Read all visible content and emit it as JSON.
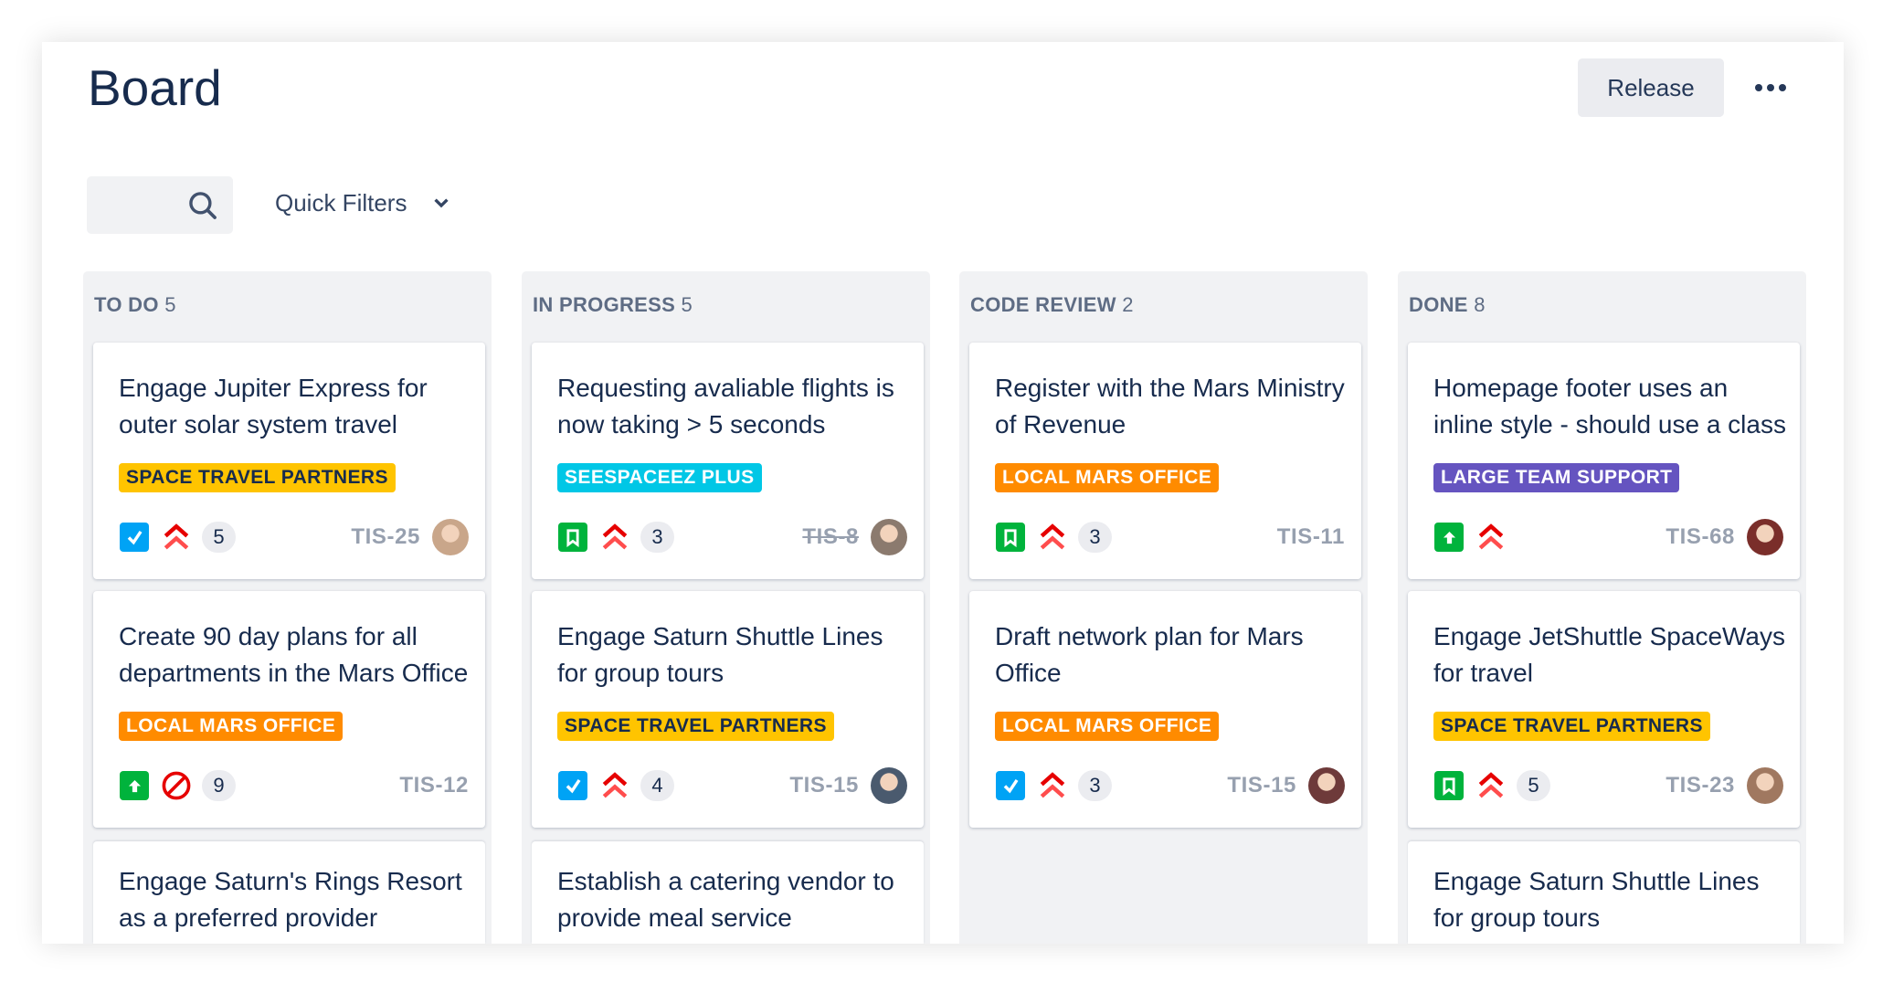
{
  "header": {
    "title": "Board",
    "release_label": "Release",
    "more_icon": "ellipsis-icon"
  },
  "filters": {
    "search_icon": "search-icon",
    "quick_filters_label": "Quick Filters"
  },
  "colors": {
    "title": "#172B4D",
    "column_bg": "#F1F2F4",
    "story": "#00B33C",
    "task": "#00A3F5",
    "priority": "#FF0000"
  },
  "columns": [
    {
      "name": "TO DO",
      "count": "5",
      "cards": [
        {
          "title": "Engage Jupiter Express for outer solar system travel",
          "label": "SPACE TRAVEL PARTNERS",
          "label_bg": "#FFC400",
          "label_fg": "#172B4D",
          "type": "task",
          "priority": "highest",
          "count": "5",
          "key": "TIS-25",
          "key_done": false,
          "avatar": "#C9A68A"
        },
        {
          "title": "Create 90 day plans for all departments in the Mars Office",
          "label": "LOCAL MARS OFFICE",
          "label_bg": "#FF8B00",
          "label_fg": "#FFFFFF",
          "type": "improvement",
          "priority": "blocker",
          "count": "9",
          "key": "TIS-12",
          "key_done": false,
          "avatar": null
        },
        {
          "title": "Engage Saturn's Rings Resort as a preferred provider"
        }
      ]
    },
    {
      "name": "IN PROGRESS",
      "count": "5",
      "cards": [
        {
          "title": "Requesting avaliable flights is now taking > 5 seconds",
          "label": "SEESPACEEZ PLUS",
          "label_bg": "#00C7E6",
          "label_fg": "#FFFFFF",
          "type": "story",
          "priority": "highest",
          "count": "3",
          "key": "TIS-8",
          "key_done": true,
          "avatar": "#8B7A6E"
        },
        {
          "title": "Engage Saturn Shuttle Lines for group tours",
          "label": "SPACE TRAVEL PARTNERS",
          "label_bg": "#FFC400",
          "label_fg": "#172B4D",
          "type": "task",
          "priority": "highest",
          "count": "4",
          "key": "TIS-15",
          "key_done": false,
          "avatar": "#4A5A6E"
        },
        {
          "title": "Establish a catering vendor to provide meal service"
        }
      ]
    },
    {
      "name": "CODE REVIEW",
      "count": "2",
      "cards": [
        {
          "title": "Register with the Mars Ministry of Revenue",
          "label": "LOCAL MARS OFFICE",
          "label_bg": "#FF8B00",
          "label_fg": "#FFFFFF",
          "type": "story",
          "priority": "highest",
          "count": "3",
          "key": "TIS-11",
          "key_done": false,
          "avatar": null
        },
        {
          "title": "Draft network plan for Mars Office",
          "label": "LOCAL MARS OFFICE",
          "label_bg": "#FF8B00",
          "label_fg": "#FFFFFF",
          "type": "task",
          "priority": "highest",
          "count": "3",
          "key": "TIS-15",
          "key_done": false,
          "avatar": "#6E3A3A"
        }
      ]
    },
    {
      "name": "DONE",
      "count": "8",
      "cards": [
        {
          "title": "Homepage footer uses an inline style - should use a class",
          "label": "LARGE TEAM SUPPORT",
          "label_bg": "#6554C0",
          "label_fg": "#FFFFFF",
          "type": "improvement",
          "priority": "highest",
          "count": null,
          "key": "TIS-68",
          "key_done": false,
          "avatar": "#7A2E2A"
        },
        {
          "title": "Engage JetShuttle SpaceWays for travel",
          "label": "SPACE TRAVEL PARTNERS",
          "label_bg": "#FFC400",
          "label_fg": "#172B4D",
          "type": "story",
          "priority": "highest",
          "count": "5",
          "key": "TIS-23",
          "key_done": false,
          "avatar": "#A07860"
        },
        {
          "title": "Engage Saturn Shuttle Lines for group tours"
        }
      ]
    }
  ]
}
